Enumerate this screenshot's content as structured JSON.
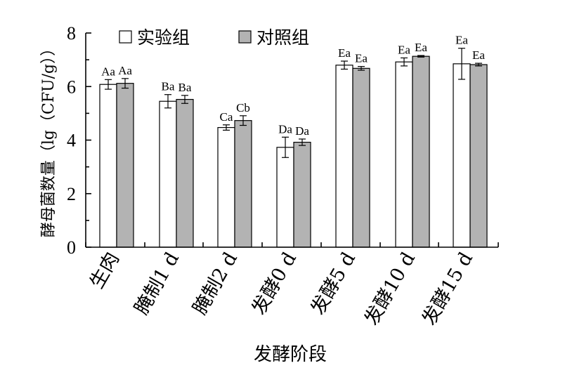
{
  "chart_data": {
    "type": "bar",
    "xlabel": "发酵阶段",
    "ylabel": "酵母菌数量（lg（CFU/g））",
    "ylim": [
      0,
      8
    ],
    "yticks": [
      0,
      2,
      4,
      6,
      8
    ],
    "grid": false,
    "legend_placement": "top-left",
    "categories": [
      "生肉",
      "腌制1 d",
      "腌制2 d",
      "发酵0 d",
      "发酵5 d",
      "发酵10 d",
      "发酵15 d"
    ],
    "series": [
      {
        "name": "实验组",
        "color": "#ffffff",
        "values": [
          6.08,
          5.45,
          4.47,
          3.73,
          6.8,
          6.92,
          6.85
        ],
        "errors": [
          0.18,
          0.25,
          0.1,
          0.38,
          0.15,
          0.15,
          0.58
        ],
        "labels": [
          "Aa",
          "Ba",
          "Ca",
          "Da",
          "Ea",
          "Ea",
          "Ea"
        ]
      },
      {
        "name": "对照组",
        "color": "#b3b3b3",
        "values": [
          6.12,
          5.52,
          4.73,
          3.92,
          6.68,
          7.13,
          6.82
        ],
        "errors": [
          0.18,
          0.15,
          0.18,
          0.12,
          0.07,
          0.03,
          0.05
        ],
        "labels": [
          "Aa",
          "Ba",
          "Cb",
          "Da",
          "Ea",
          "Ea",
          "Ea"
        ]
      }
    ]
  }
}
